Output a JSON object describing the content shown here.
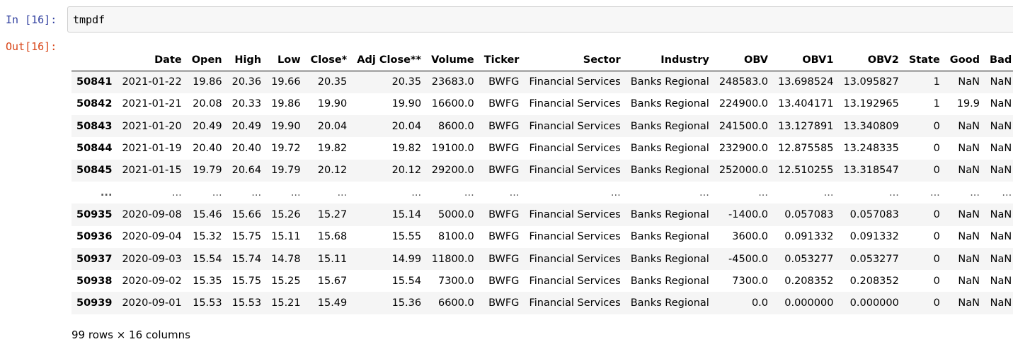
{
  "input_prompt": "In [16]:",
  "output_prompt": "Out[16]:",
  "input_code": "tmpdf",
  "table": {
    "columns": [
      "",
      "Date",
      "Open",
      "High",
      "Low",
      "Close*",
      "Adj Close**",
      "Volume",
      "Ticker",
      "Sector",
      "Industry",
      "OBV",
      "OBV1",
      "OBV2",
      "State",
      "Good",
      "Bad"
    ],
    "rows": [
      [
        "50841",
        "2021-01-22",
        "19.86",
        "20.36",
        "19.66",
        "20.35",
        "20.35",
        "23683.0",
        "BWFG",
        "Financial Services",
        "Banks Regional",
        "248583.0",
        "13.698524",
        "13.095827",
        "1",
        "NaN",
        "NaN"
      ],
      [
        "50842",
        "2021-01-21",
        "20.08",
        "20.33",
        "19.86",
        "19.90",
        "19.90",
        "16600.0",
        "BWFG",
        "Financial Services",
        "Banks Regional",
        "224900.0",
        "13.404171",
        "13.192965",
        "1",
        "19.9",
        "NaN"
      ],
      [
        "50843",
        "2021-01-20",
        "20.49",
        "20.49",
        "19.90",
        "20.04",
        "20.04",
        "8600.0",
        "BWFG",
        "Financial Services",
        "Banks Regional",
        "241500.0",
        "13.127891",
        "13.340809",
        "0",
        "NaN",
        "NaN"
      ],
      [
        "50844",
        "2021-01-19",
        "20.40",
        "20.40",
        "19.72",
        "19.82",
        "19.82",
        "19100.0",
        "BWFG",
        "Financial Services",
        "Banks Regional",
        "232900.0",
        "12.875585",
        "13.248335",
        "0",
        "NaN",
        "NaN"
      ],
      [
        "50845",
        "2021-01-15",
        "19.79",
        "20.64",
        "19.79",
        "20.12",
        "20.12",
        "29200.0",
        "BWFG",
        "Financial Services",
        "Banks Regional",
        "252000.0",
        "12.510255",
        "13.318547",
        "0",
        "NaN",
        "NaN"
      ],
      [
        "...",
        "...",
        "...",
        "...",
        "...",
        "...",
        "...",
        "...",
        "...",
        "...",
        "...",
        "...",
        "...",
        "...",
        "...",
        "...",
        "..."
      ],
      [
        "50935",
        "2020-09-08",
        "15.46",
        "15.66",
        "15.26",
        "15.27",
        "15.14",
        "5000.0",
        "BWFG",
        "Financial Services",
        "Banks Regional",
        "-1400.0",
        "0.057083",
        "0.057083",
        "0",
        "NaN",
        "NaN"
      ],
      [
        "50936",
        "2020-09-04",
        "15.32",
        "15.75",
        "15.11",
        "15.68",
        "15.55",
        "8100.0",
        "BWFG",
        "Financial Services",
        "Banks Regional",
        "3600.0",
        "0.091332",
        "0.091332",
        "0",
        "NaN",
        "NaN"
      ],
      [
        "50937",
        "2020-09-03",
        "15.54",
        "15.74",
        "14.78",
        "15.11",
        "14.99",
        "11800.0",
        "BWFG",
        "Financial Services",
        "Banks Regional",
        "-4500.0",
        "0.053277",
        "0.053277",
        "0",
        "NaN",
        "NaN"
      ],
      [
        "50938",
        "2020-09-02",
        "15.35",
        "15.75",
        "15.25",
        "15.67",
        "15.54",
        "7300.0",
        "BWFG",
        "Financial Services",
        "Banks Regional",
        "7300.0",
        "0.208352",
        "0.208352",
        "0",
        "NaN",
        "NaN"
      ],
      [
        "50939",
        "2020-09-01",
        "15.53",
        "15.53",
        "15.21",
        "15.49",
        "15.36",
        "6600.0",
        "BWFG",
        "Financial Services",
        "Banks Regional",
        "0.0",
        "0.000000",
        "0.000000",
        "0",
        "NaN",
        "NaN"
      ]
    ]
  },
  "shape_info": "99 rows × 16 columns"
}
